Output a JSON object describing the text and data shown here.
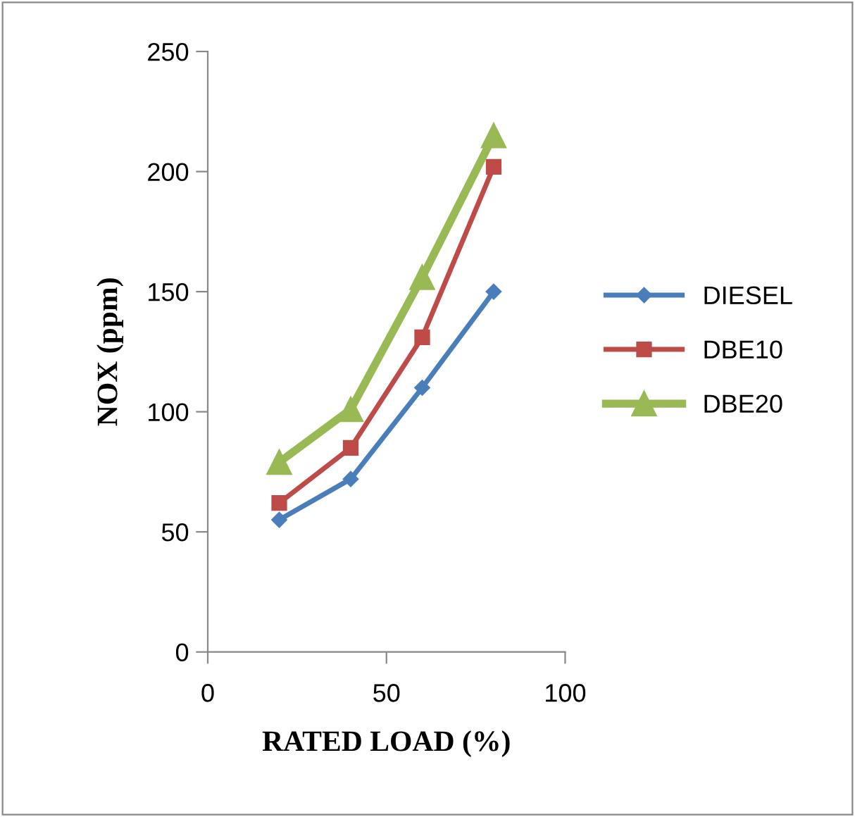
{
  "chart_data": {
    "type": "line",
    "xlabel": "RATED LOAD (%)",
    "ylabel": "NOX (ppm)",
    "x": [
      20,
      40,
      60,
      80
    ],
    "series": [
      {
        "name": "DIESEL",
        "color": "#4a7ebb",
        "values": [
          55,
          72,
          110,
          150
        ],
        "marker": "diamond"
      },
      {
        "name": "DBE10",
        "color": "#be4b48",
        "values": [
          62,
          85,
          131,
          202
        ],
        "marker": "square"
      },
      {
        "name": "DBE20",
        "color": "#98b954",
        "values": [
          79,
          101,
          156,
          215
        ],
        "marker": "triangle"
      }
    ],
    "xlim": [
      0,
      100
    ],
    "xticks": [
      0,
      50,
      100
    ],
    "ylim": [
      0,
      250
    ],
    "yticks": [
      0,
      50,
      100,
      150,
      200,
      250
    ],
    "grid": false,
    "legend": "right",
    "line_style": "solid"
  }
}
